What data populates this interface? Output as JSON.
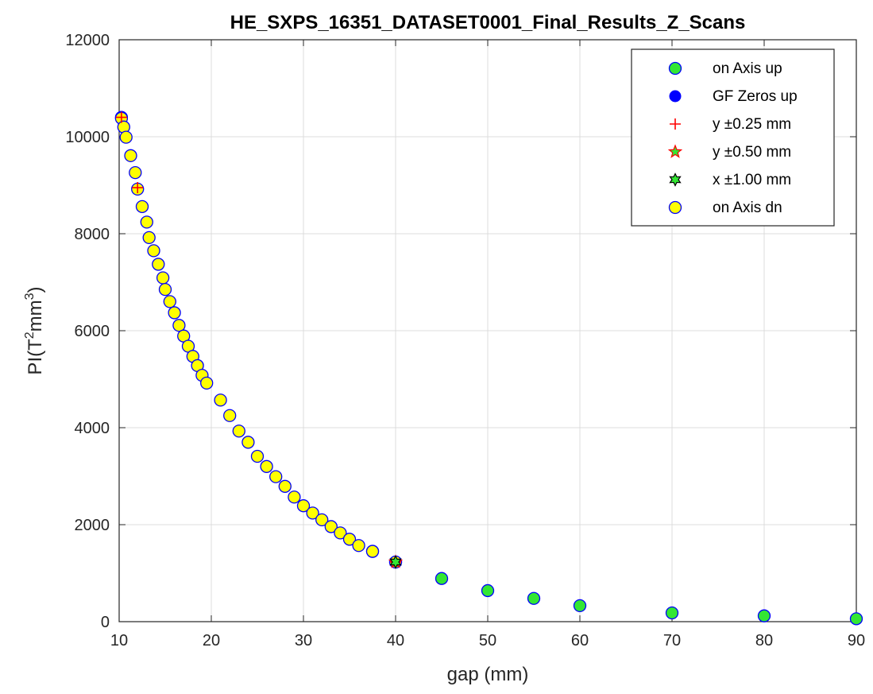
{
  "chart_data": {
    "type": "scatter",
    "title": "HE_SXPS_16351_DATASET0001_Final_Results_Z_Scans",
    "xlabel": "gap (mm)",
    "ylabel_prefix": "PI(T",
    "ylabel_sup1": "2",
    "ylabel_mid": "mm",
    "ylabel_sup2": "3",
    "ylabel_suffix": ")",
    "xlim": [
      10,
      90
    ],
    "ylim": [
      0,
      12000
    ],
    "xticks": [
      10,
      20,
      30,
      40,
      50,
      60,
      70,
      80,
      90
    ],
    "yticks": [
      0,
      2000,
      4000,
      6000,
      8000,
      10000,
      12000
    ],
    "grid": true,
    "legend_position": "top-right",
    "series": [
      {
        "name": "on Axis up",
        "marker": "circle",
        "fill": "#33e633",
        "stroke": "#0000ff",
        "points": [
          [
            10.25,
            10400
          ],
          [
            37.5,
            1450
          ],
          [
            40,
            1230
          ],
          [
            45,
            890
          ],
          [
            50,
            640
          ],
          [
            55,
            480
          ],
          [
            60,
            330
          ],
          [
            70,
            180
          ],
          [
            80,
            120
          ],
          [
            90,
            60
          ]
        ]
      },
      {
        "name": "GF Zeros up",
        "marker": "filled-circle",
        "fill": "#0000ff",
        "stroke": "#0000ff",
        "points": []
      },
      {
        "name": "y ±0.25 mm",
        "marker": "plus",
        "fill": "none",
        "stroke": "#ff0000",
        "points": [
          [
            10.25,
            10400
          ],
          [
            12,
            8950
          ],
          [
            40,
            1230
          ]
        ]
      },
      {
        "name": "y ±0.50 mm",
        "marker": "pentagram",
        "fill": "#33e633",
        "stroke": "#ff0000",
        "points": [
          [
            40,
            1230
          ]
        ]
      },
      {
        "name": "x ±1.00 mm",
        "marker": "hexagram",
        "fill": "#33e633",
        "stroke": "#000000",
        "points": [
          [
            40,
            1230
          ]
        ]
      },
      {
        "name": "on Axis dn",
        "marker": "circle",
        "fill": "#ffff00",
        "stroke": "#0000ff",
        "points": [
          [
            10.25,
            10380
          ],
          [
            10.5,
            10200
          ],
          [
            10.75,
            9990
          ],
          [
            11.25,
            9610
          ],
          [
            11.75,
            9260
          ],
          [
            12.0,
            8920
          ],
          [
            12.5,
            8560
          ],
          [
            13.0,
            8240
          ],
          [
            13.25,
            7920
          ],
          [
            13.75,
            7650
          ],
          [
            14.25,
            7370
          ],
          [
            14.75,
            7090
          ],
          [
            15.0,
            6850
          ],
          [
            15.5,
            6600
          ],
          [
            16.0,
            6370
          ],
          [
            16.5,
            6110
          ],
          [
            17.0,
            5890
          ],
          [
            17.5,
            5680
          ],
          [
            18.0,
            5470
          ],
          [
            18.5,
            5280
          ],
          [
            19.0,
            5080
          ],
          [
            19.5,
            4920
          ],
          [
            21.0,
            4570
          ],
          [
            22.0,
            4250
          ],
          [
            23.0,
            3930
          ],
          [
            24.0,
            3700
          ],
          [
            25.0,
            3410
          ],
          [
            26.0,
            3200
          ],
          [
            27.0,
            2990
          ],
          [
            28.0,
            2790
          ],
          [
            29.0,
            2570
          ],
          [
            30.0,
            2390
          ],
          [
            31.0,
            2240
          ],
          [
            32.0,
            2100
          ],
          [
            33.0,
            1960
          ],
          [
            34.0,
            1830
          ],
          [
            35.0,
            1700
          ],
          [
            36.0,
            1570
          ],
          [
            37.5,
            1450
          ],
          [
            40.0,
            1230
          ]
        ]
      }
    ]
  }
}
